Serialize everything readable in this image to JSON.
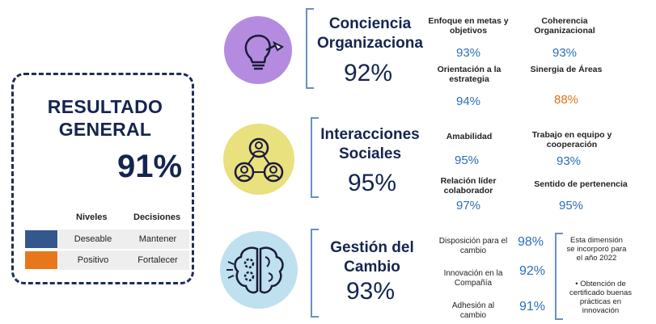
{
  "summary": {
    "title_line1": "RESULTADO",
    "title_line2": "GENERAL",
    "percent": "91%",
    "legend": {
      "col_levels": "Niveles",
      "col_decisions": "Decisiones",
      "rows": [
        {
          "level": "Deseable",
          "decision": "Mantener",
          "color": "#34588d"
        },
        {
          "level": "Positivo",
          "decision": "Fortalecer",
          "color": "#e8771c"
        }
      ]
    }
  },
  "sections": [
    {
      "title_line1": "Conciencia",
      "title_line2": "Organizaciona",
      "percent": "92%",
      "icon": "lightbulb-icon",
      "metrics": [
        {
          "label": "Enfoque en metas y objetivos",
          "value": "93%"
        },
        {
          "label": "Coherencia Organizacional",
          "value": "93%"
        },
        {
          "label": "Orientación a la estrategia",
          "value": "94%"
        },
        {
          "label": "Sinergia de Áreas",
          "value": "88%"
        }
      ]
    },
    {
      "title_line1": "Interacciones",
      "title_line2": "Sociales",
      "percent": "95%",
      "icon": "people-network-icon",
      "metrics": [
        {
          "label": "Amabilidad",
          "value": "95%"
        },
        {
          "label": "Trabajo en equipo y cooperación",
          "value": "93%"
        },
        {
          "label": "Relación líder colaborador",
          "value": "97%"
        },
        {
          "label": "Sentido de pertenencia",
          "value": "95%"
        }
      ]
    },
    {
      "title_line1": "Gestión del",
      "title_line2": "Cambio",
      "percent": "93%",
      "icon": "brain-gears-icon",
      "metrics": [
        {
          "label": "Disposición para el cambio",
          "value": "98%"
        },
        {
          "label": "Innovación en la Compañía",
          "value": "92%"
        },
        {
          "label": "Adhesión al cambio",
          "value": "91%"
        }
      ],
      "note1": "Esta dimensión se incorporó para el año 2022",
      "note2": "• Obtención de certificado buenas prácticas en innovación"
    }
  ]
}
